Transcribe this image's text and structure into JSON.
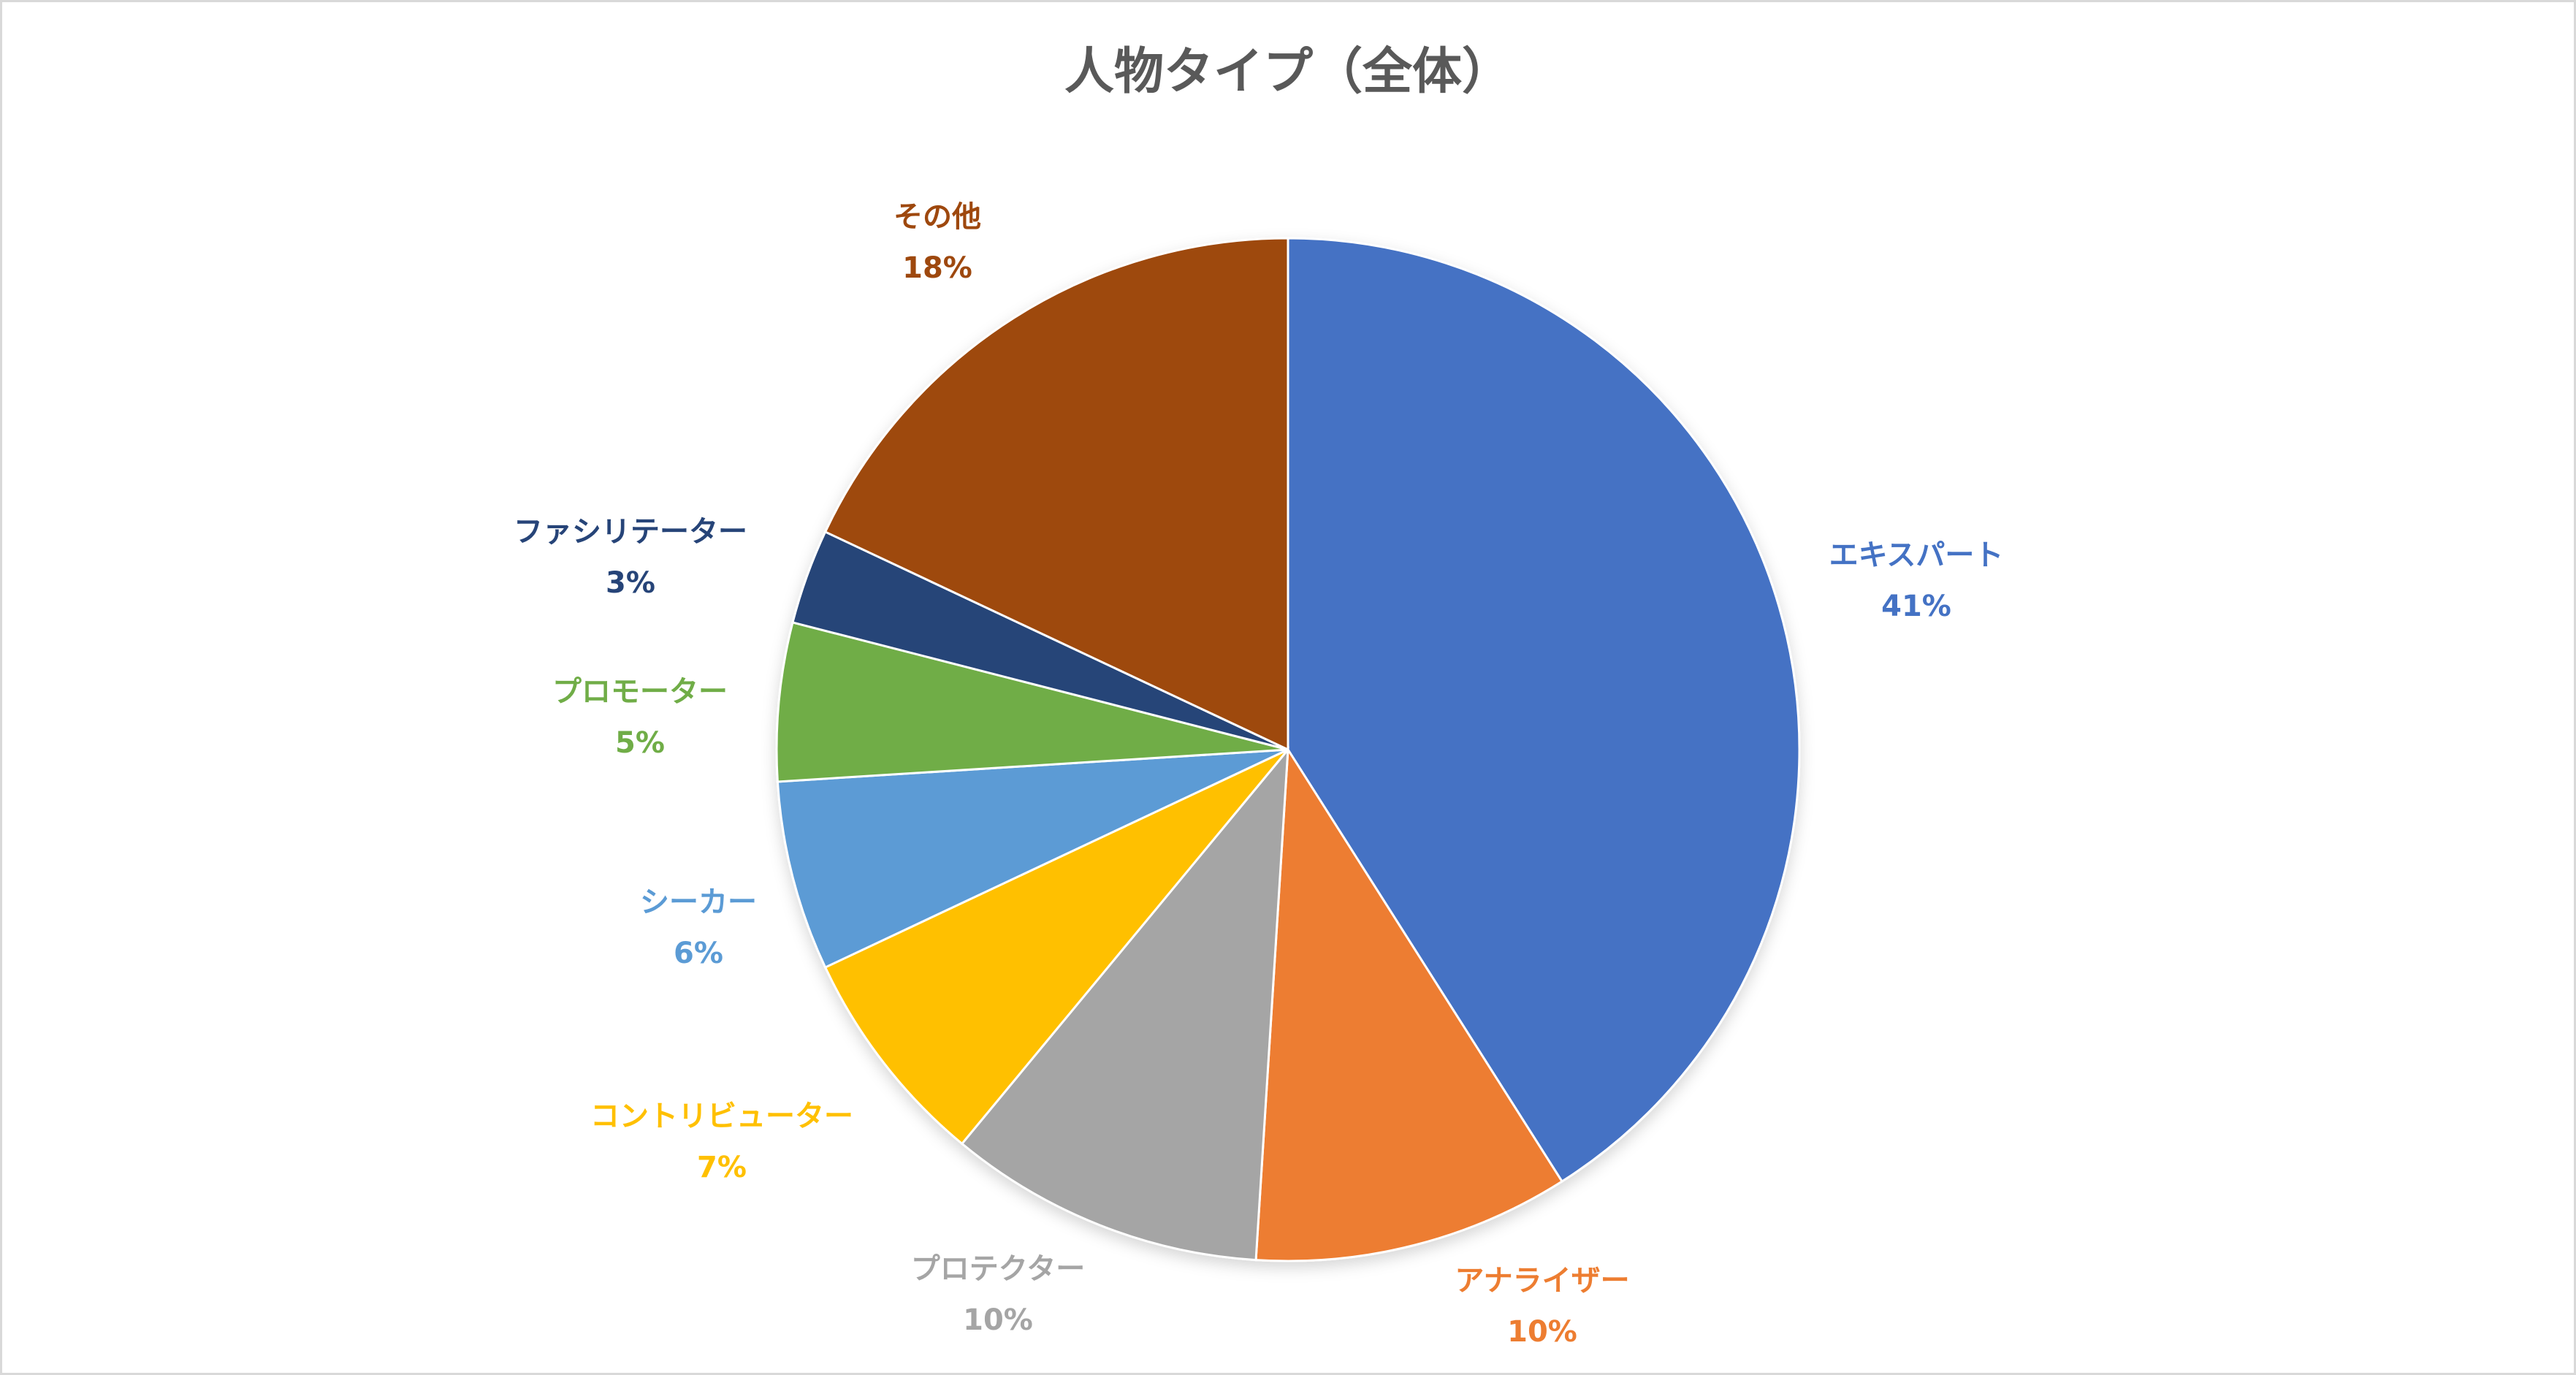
{
  "chart_data": {
    "type": "pie",
    "title": "人物タイプ（全体）",
    "start_angle_deg": 0,
    "direction": "clockwise",
    "slices": [
      {
        "label": "エキスパート",
        "value": 41,
        "display": "41%",
        "color": "#4472C4"
      },
      {
        "label": "アナライザー",
        "value": 10,
        "display": "10%",
        "color": "#ED7D31"
      },
      {
        "label": "プロテクター",
        "value": 10,
        "display": "10%",
        "color": "#A5A5A5"
      },
      {
        "label": "コントリビューター",
        "value": 7,
        "display": "7%",
        "color": "#FFC000"
      },
      {
        "label": "シーカー",
        "value": 6,
        "display": "6%",
        "color": "#5B9BD5"
      },
      {
        "label": "プロモーター",
        "value": 5,
        "display": "5%",
        "color": "#70AD47"
      },
      {
        "label": "ファシリテーター",
        "value": 3,
        "display": "3%",
        "color": "#264478"
      },
      {
        "label": "その他",
        "value": 18,
        "display": "18%",
        "color": "#9E480E"
      }
    ]
  }
}
